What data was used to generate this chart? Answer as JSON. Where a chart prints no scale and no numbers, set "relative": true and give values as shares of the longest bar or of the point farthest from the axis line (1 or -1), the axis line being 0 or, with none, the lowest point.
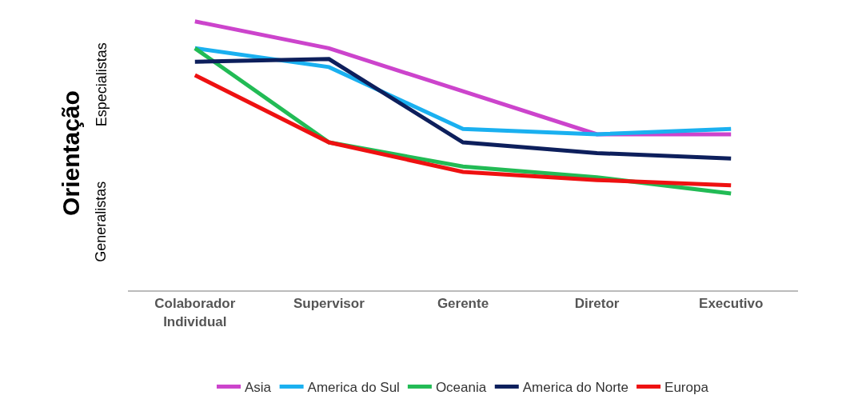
{
  "chart_data": {
    "type": "line",
    "relative": true,
    "ylabel": "Orientação",
    "annotations": [
      "Especialistas",
      "Generalistas"
    ],
    "categories": [
      "Colaborador Individual",
      "Supervisor",
      "Gerente",
      "Diretor",
      "Executivo"
    ],
    "series": [
      {
        "name": "Asia",
        "color": "#cc44cc",
        "values": [
          1,
          0.9,
          0.74,
          0.58,
          0.58
        ]
      },
      {
        "name": "America do Sul",
        "color": "#1ab0f0",
        "values": [
          0.9,
          0.83,
          0.6,
          0.58,
          0.6
        ]
      },
      {
        "name": "Oceania",
        "color": "#22bb55",
        "values": [
          0.9,
          0.55,
          0.46,
          0.42,
          0.36
        ]
      },
      {
        "name": "America do Norte",
        "color": "#0d1f5c",
        "values": [
          0.85,
          0.86,
          0.55,
          0.51,
          0.49
        ]
      },
      {
        "name": "Europa",
        "color": "#ee1111",
        "values": [
          0.8,
          0.55,
          0.44,
          0.41,
          0.39
        ]
      }
    ],
    "legend": "bottom",
    "grid": false,
    "marker": "none",
    "line_style": "solid"
  }
}
